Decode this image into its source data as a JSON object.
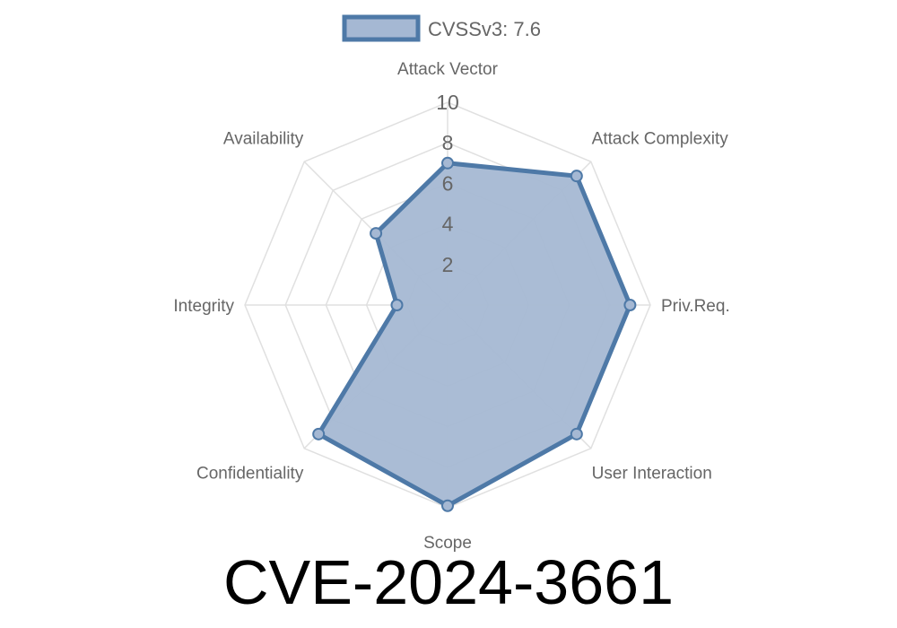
{
  "chart_data": {
    "type": "radar",
    "series": [
      {
        "name": "CVSSv3: 7.6",
        "values": [
          7.0,
          9.0,
          9.0,
          9.0,
          9.9,
          9.0,
          2.5,
          5.0
        ],
        "fill_color": "#a5b8d3",
        "line_color": "#4e79a7"
      }
    ],
    "categories": [
      "Attack Vector",
      "Attack Complexity",
      "Priv.Req.",
      "User Interaction",
      "Scope",
      "Confidentiality",
      "Integrity",
      "Availability"
    ],
    "r_ticks": [
      "2",
      "4",
      "6",
      "8",
      "10"
    ],
    "r_range": [
      0,
      10
    ],
    "grid": true,
    "legend_position": "top-center"
  },
  "title": "CVE-2024-3661"
}
